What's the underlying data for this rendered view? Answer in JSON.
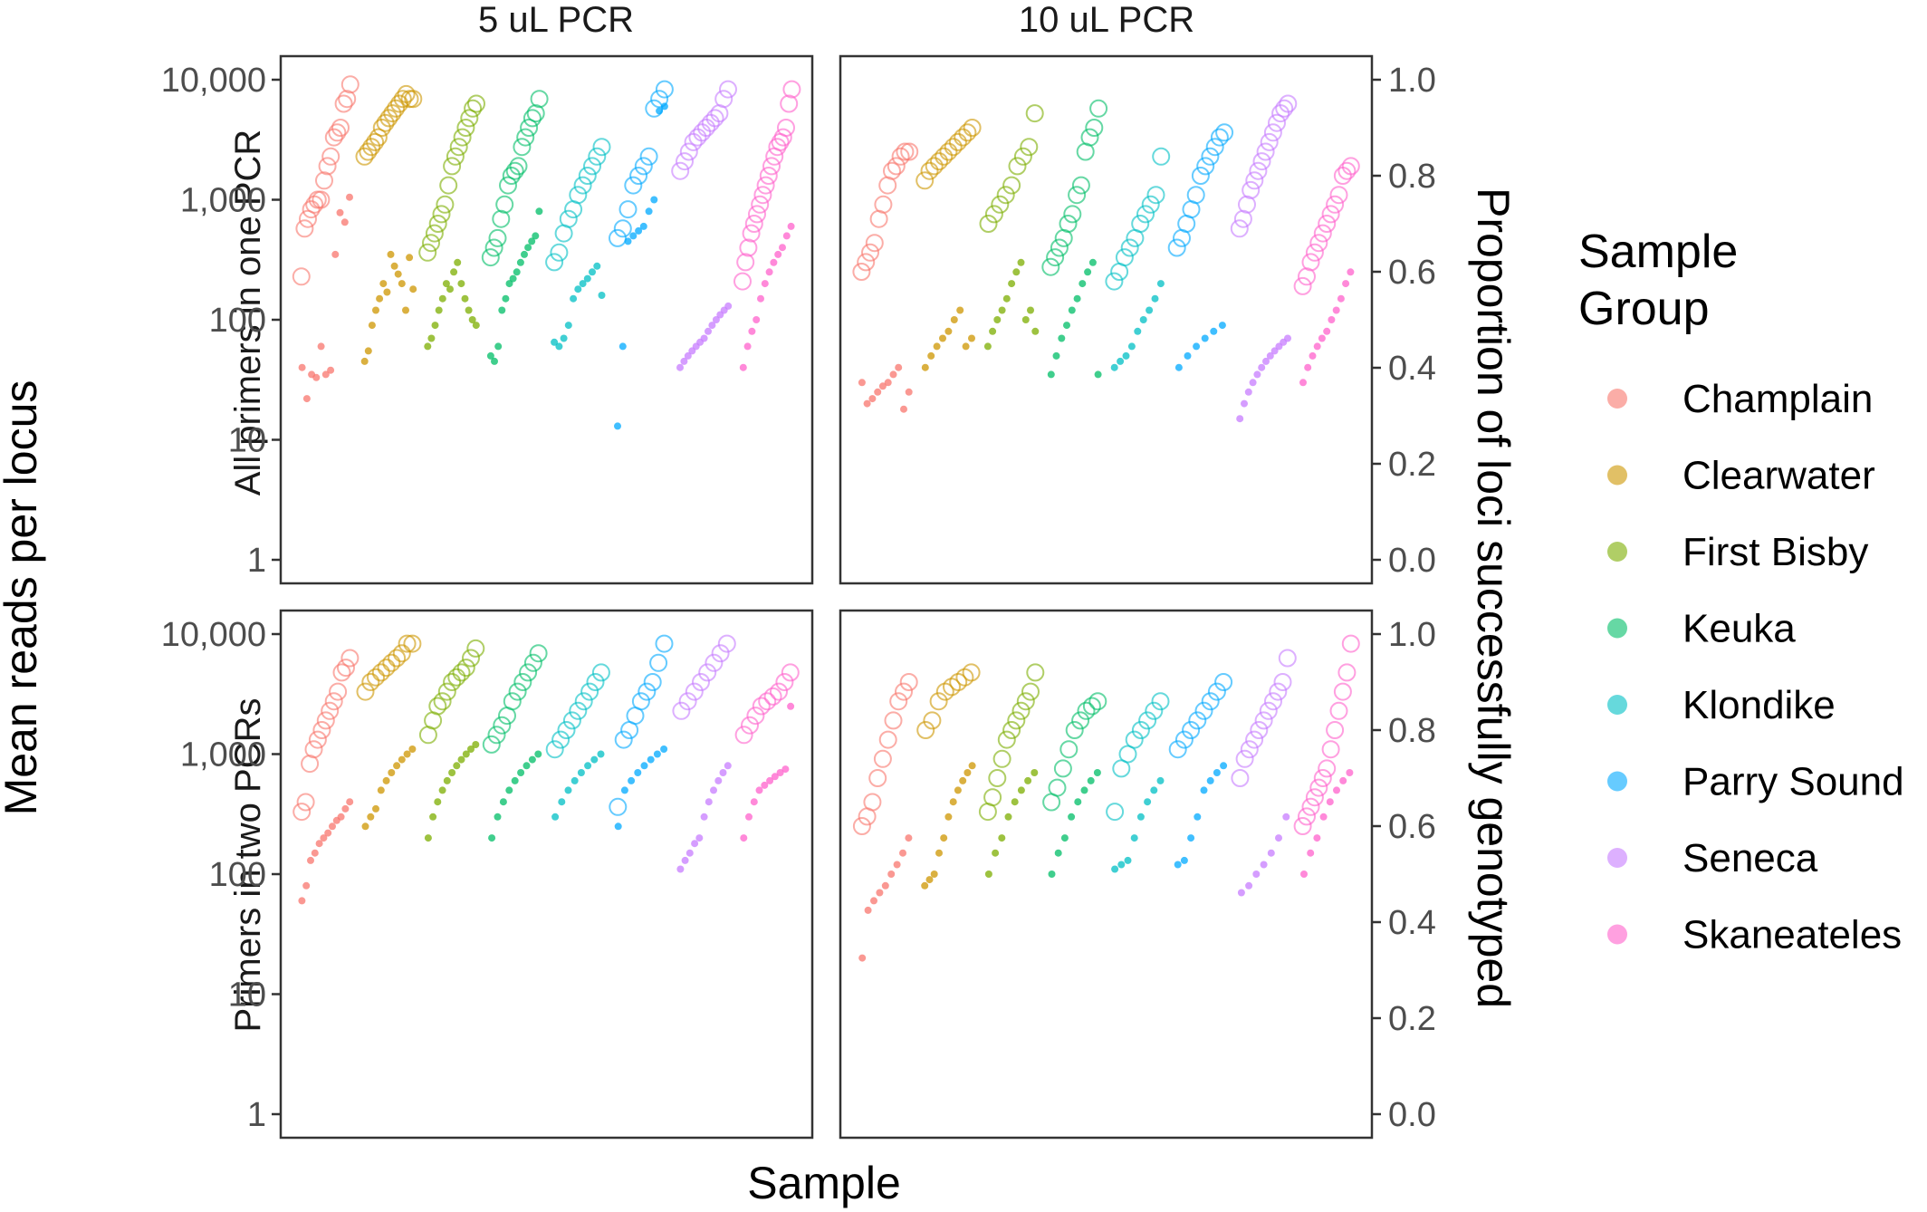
{
  "chart_data": {
    "type": "scatter",
    "facet_columns": [
      "5 uL PCR",
      "10 uL PCR"
    ],
    "facet_rows": [
      "All primers in one PCR",
      "Primers in two PCRs"
    ],
    "xlabel": "Sample",
    "ylabel": "Mean reads per locus",
    "ylabel_secondary": "Proportion of loci successfully genotyped",
    "y_scale": "log10",
    "y_ticks": [
      "1",
      "10",
      "100",
      "1,000",
      "10,000"
    ],
    "y_tick_values": [
      1,
      10,
      100,
      1000,
      10000
    ],
    "y2_ticks": [
      "0.0",
      "0.2",
      "0.4",
      "0.6",
      "0.8",
      "1.0"
    ],
    "y2_tick_values": [
      0.0,
      0.2,
      0.4,
      0.6,
      0.8,
      1.0
    ],
    "ylim": [
      1,
      10000
    ],
    "y2lim": [
      0.0,
      1.0
    ],
    "grid": false,
    "legend": {
      "title_lines": [
        "Sample",
        "Group"
      ],
      "placement": "right",
      "groups": [
        {
          "name": "Champlain",
          "color": "#F8766D"
        },
        {
          "name": "Clearwater",
          "color": "#CD9600"
        },
        {
          "name": "First Bisby",
          "color": "#7CAE00"
        },
        {
          "name": "Keuka",
          "color": "#00BE67"
        },
        {
          "name": "Klondike",
          "color": "#00BFC4"
        },
        {
          "name": "Parry Sound",
          "color": "#00A9FF"
        },
        {
          "name": "Seneca",
          "color": "#C77CFF"
        },
        {
          "name": "Skaneateles",
          "color": "#FF61CC"
        }
      ]
    },
    "marker_encoding": {
      "small_filled_point": "Mean reads per locus (left axis)",
      "open_circle": "Proportion of loci successfully genotyped (right axis)"
    },
    "panels": [
      {
        "column": "5 uL PCR",
        "row": "All primers in one PCR",
        "series": [
          {
            "group": "Champlain",
            "reads": [
              40,
              22,
              35,
              33,
              60,
              35,
              38,
              350,
              780,
              650,
              1050
            ],
            "proportion": [
              0.59,
              0.69,
              0.71,
              0.73,
              0.74,
              0.75,
              0.75,
              0.79,
              0.82,
              0.84,
              0.88,
              0.89,
              0.9,
              0.95,
              0.96,
              0.99
            ]
          },
          {
            "group": "Clearwater",
            "reads": [
              45,
              55,
              90,
              120,
              150,
              200,
              170,
              350,
              280,
              240,
              200,
              120,
              330,
              180
            ],
            "proportion": [
              0.84,
              0.85,
              0.86,
              0.87,
              0.88,
              0.9,
              0.91,
              0.92,
              0.93,
              0.94,
              0.95,
              0.96,
              0.97,
              0.96,
              0.96
            ]
          },
          {
            "group": "First Bisby",
            "reads": [
              60,
              70,
              90,
              120,
              150,
              200,
              180,
              250,
              300,
              200,
              150,
              120,
              100,
              90
            ],
            "proportion": [
              0.64,
              0.66,
              0.68,
              0.7,
              0.72,
              0.74,
              0.78,
              0.82,
              0.84,
              0.86,
              0.88,
              0.9,
              0.92,
              0.94,
              0.95
            ]
          },
          {
            "group": "Keuka",
            "reads": [
              50,
              45,
              60,
              120,
              150,
              200,
              220,
              250,
              300,
              350,
              400,
              450,
              500,
              800
            ],
            "proportion": [
              0.63,
              0.65,
              0.67,
              0.71,
              0.74,
              0.78,
              0.8,
              0.81,
              0.82,
              0.86,
              0.88,
              0.9,
              0.92,
              0.93,
              0.96
            ]
          },
          {
            "group": "Klondike",
            "reads": [
              65,
              60,
              70,
              90,
              150,
              180,
              200,
              220,
              250,
              280,
              160
            ],
            "proportion": [
              0.62,
              0.64,
              0.68,
              0.71,
              0.73,
              0.76,
              0.78,
              0.8,
              0.82,
              0.84,
              0.86
            ]
          },
          {
            "group": "Parry Sound",
            "reads": [
              13,
              60,
              450,
              500,
              550,
              600,
              800,
              1000,
              5500,
              6000
            ],
            "proportion": [
              0.67,
              0.69,
              0.73,
              0.78,
              0.8,
              0.82,
              0.84,
              0.94,
              0.96,
              0.98
            ]
          },
          {
            "group": "Seneca",
            "reads": [
              40,
              45,
              50,
              55,
              60,
              65,
              70,
              80,
              90,
              100,
              110,
              120,
              130
            ],
            "proportion": [
              0.81,
              0.83,
              0.85,
              0.87,
              0.88,
              0.89,
              0.9,
              0.91,
              0.92,
              0.93,
              0.96,
              0.98
            ]
          },
          {
            "group": "Skaneateles",
            "reads": [
              40,
              60,
              80,
              100,
              150,
              200,
              250,
              300,
              350,
              400,
              500,
              600
            ],
            "proportion": [
              0.58,
              0.62,
              0.65,
              0.68,
              0.7,
              0.72,
              0.74,
              0.76,
              0.78,
              0.8,
              0.82,
              0.84,
              0.86,
              0.87,
              0.88,
              0.9,
              0.95,
              0.98
            ]
          }
        ]
      },
      {
        "column": "10 uL PCR",
        "row": "All primers in one PCR",
        "series": [
          {
            "group": "Champlain",
            "reads": [
              30,
              20,
              22,
              25,
              28,
              30,
              35,
              40,
              18,
              25
            ],
            "proportion": [
              0.6,
              0.62,
              0.64,
              0.66,
              0.71,
              0.74,
              0.78,
              0.81,
              0.82,
              0.84,
              0.85,
              0.85
            ]
          },
          {
            "group": "Clearwater",
            "reads": [
              40,
              50,
              60,
              70,
              80,
              100,
              120,
              60,
              70
            ],
            "proportion": [
              0.79,
              0.81,
              0.82,
              0.83,
              0.84,
              0.85,
              0.86,
              0.87,
              0.88,
              0.89,
              0.9
            ]
          },
          {
            "group": "First Bisby",
            "reads": [
              60,
              80,
              100,
              120,
              150,
              200,
              250,
              300,
              100,
              120,
              80
            ],
            "proportion": [
              0.7,
              0.72,
              0.74,
              0.76,
              0.78,
              0.82,
              0.84,
              0.86,
              0.93
            ]
          },
          {
            "group": "Keuka",
            "reads": [
              35,
              50,
              70,
              90,
              120,
              150,
              200,
              250,
              300,
              35
            ],
            "proportion": [
              0.61,
              0.63,
              0.65,
              0.67,
              0.7,
              0.72,
              0.76,
              0.78,
              0.85,
              0.88,
              0.9,
              0.94
            ]
          },
          {
            "group": "Klondike",
            "reads": [
              40,
              45,
              50,
              60,
              80,
              100,
              120,
              150,
              200
            ],
            "proportion": [
              0.58,
              0.6,
              0.63,
              0.65,
              0.67,
              0.7,
              0.72,
              0.74,
              0.76,
              0.84
            ]
          },
          {
            "group": "Parry Sound",
            "reads": [
              40,
              50,
              60,
              70,
              80,
              90
            ],
            "proportion": [
              0.65,
              0.67,
              0.7,
              0.73,
              0.76,
              0.8,
              0.82,
              0.84,
              0.86,
              0.88,
              0.89
            ]
          },
          {
            "group": "Seneca",
            "reads": [
              15,
              20,
              25,
              30,
              35,
              40,
              45,
              50,
              55,
              60,
              65,
              70
            ],
            "proportion": [
              0.69,
              0.71,
              0.74,
              0.77,
              0.79,
              0.81,
              0.83,
              0.85,
              0.87,
              0.89,
              0.91,
              0.93,
              0.94,
              0.95
            ]
          },
          {
            "group": "Skaneateles",
            "reads": [
              30,
              40,
              50,
              60,
              70,
              80,
              100,
              120,
              150,
              200,
              250
            ],
            "proportion": [
              0.57,
              0.59,
              0.62,
              0.64,
              0.66,
              0.68,
              0.7,
              0.72,
              0.74,
              0.76,
              0.8,
              0.81,
              0.82
            ]
          }
        ]
      },
      {
        "column": "5 uL PCR",
        "row": "Primers in two PCRs",
        "series": [
          {
            "group": "Champlain",
            "reads": [
              60,
              80,
              130,
              150,
              180,
              200,
              220,
              250,
              280,
              300,
              350,
              400
            ],
            "proportion": [
              0.63,
              0.65,
              0.73,
              0.76,
              0.78,
              0.8,
              0.82,
              0.84,
              0.86,
              0.88,
              0.92,
              0.93,
              0.95
            ]
          },
          {
            "group": "Clearwater",
            "reads": [
              250,
              300,
              350,
              500,
              600,
              700,
              800,
              900,
              1000,
              1100
            ],
            "proportion": [
              0.88,
              0.9,
              0.91,
              0.92,
              0.93,
              0.94,
              0.95,
              0.96,
              0.98,
              0.98
            ]
          },
          {
            "group": "First Bisby",
            "reads": [
              200,
              300,
              400,
              500,
              600,
              700,
              800,
              900,
              1000,
              1100,
              1200
            ],
            "proportion": [
              0.79,
              0.82,
              0.85,
              0.86,
              0.88,
              0.9,
              0.91,
              0.92,
              0.93,
              0.95,
              0.97
            ]
          },
          {
            "group": "Keuka",
            "reads": [
              200,
              300,
              400,
              500,
              600,
              700,
              800,
              900,
              1000
            ],
            "proportion": [
              0.77,
              0.79,
              0.81,
              0.83,
              0.86,
              0.88,
              0.9,
              0.92,
              0.94,
              0.96
            ]
          },
          {
            "group": "Klondike",
            "reads": [
              300,
              400,
              500,
              600,
              700,
              800,
              900,
              1000
            ],
            "proportion": [
              0.76,
              0.78,
              0.8,
              0.82,
              0.84,
              0.86,
              0.88,
              0.9,
              0.92
            ]
          },
          {
            "group": "Parry Sound",
            "reads": [
              250,
              500,
              600,
              700,
              800,
              900,
              1000,
              1100
            ],
            "proportion": [
              0.64,
              0.78,
              0.8,
              0.83,
              0.86,
              0.88,
              0.9,
              0.94,
              0.98
            ]
          },
          {
            "group": "Seneca",
            "reads": [
              110,
              130,
              150,
              180,
              200,
              300,
              400,
              500,
              600,
              700,
              800
            ],
            "proportion": [
              0.84,
              0.86,
              0.88,
              0.9,
              0.92,
              0.94,
              0.96,
              0.98
            ]
          },
          {
            "group": "Skaneateles",
            "reads": [
              200,
              300,
              400,
              500,
              550,
              600,
              650,
              700,
              750,
              2500
            ],
            "proportion": [
              0.79,
              0.81,
              0.83,
              0.85,
              0.86,
              0.87,
              0.88,
              0.9,
              0.92
            ]
          }
        ]
      },
      {
        "column": "10 uL PCR",
        "row": "Primers in two PCRs",
        "series": [
          {
            "group": "Champlain",
            "reads": [
              20,
              50,
              60,
              70,
              80,
              100,
              120,
              150,
              200
            ],
            "proportion": [
              0.6,
              0.62,
              0.65,
              0.7,
              0.74,
              0.78,
              0.82,
              0.86,
              0.88,
              0.9
            ]
          },
          {
            "group": "Clearwater",
            "reads": [
              80,
              90,
              100,
              150,
              200,
              300,
              400,
              500,
              600,
              700,
              800
            ],
            "proportion": [
              0.8,
              0.82,
              0.86,
              0.88,
              0.89,
              0.9,
              0.91,
              0.92
            ]
          },
          {
            "group": "First Bisby",
            "reads": [
              100,
              150,
              200,
              300,
              400,
              500,
              600,
              700
            ],
            "proportion": [
              0.63,
              0.66,
              0.7,
              0.74,
              0.78,
              0.8,
              0.82,
              0.84,
              0.86,
              0.88,
              0.92
            ]
          },
          {
            "group": "Keuka",
            "reads": [
              100,
              150,
              200,
              300,
              400,
              500,
              600,
              700
            ],
            "proportion": [
              0.65,
              0.68,
              0.72,
              0.76,
              0.8,
              0.82,
              0.84,
              0.85,
              0.86
            ]
          },
          {
            "group": "Klondike",
            "reads": [
              110,
              120,
              130,
              200,
              300,
              400,
              500,
              600
            ],
            "proportion": [
              0.63,
              0.72,
              0.75,
              0.78,
              0.8,
              0.82,
              0.84,
              0.86
            ]
          },
          {
            "group": "Parry Sound",
            "reads": [
              120,
              130,
              200,
              300,
              500,
              600,
              700,
              800
            ],
            "proportion": [
              0.76,
              0.78,
              0.8,
              0.82,
              0.84,
              0.86,
              0.88,
              0.9
            ]
          },
          {
            "group": "Seneca",
            "reads": [
              70,
              80,
              100,
              120,
              150,
              200,
              300
            ],
            "proportion": [
              0.7,
              0.74,
              0.76,
              0.78,
              0.8,
              0.82,
              0.84,
              0.86,
              0.88,
              0.9,
              0.95
            ]
          },
          {
            "group": "Skaneateles",
            "reads": [
              100,
              150,
              200,
              300,
              400,
              500,
              600,
              700
            ],
            "proportion": [
              0.6,
              0.62,
              0.64,
              0.66,
              0.68,
              0.7,
              0.72,
              0.76,
              0.8,
              0.84,
              0.88,
              0.92,
              0.98
            ]
          }
        ]
      }
    ]
  }
}
